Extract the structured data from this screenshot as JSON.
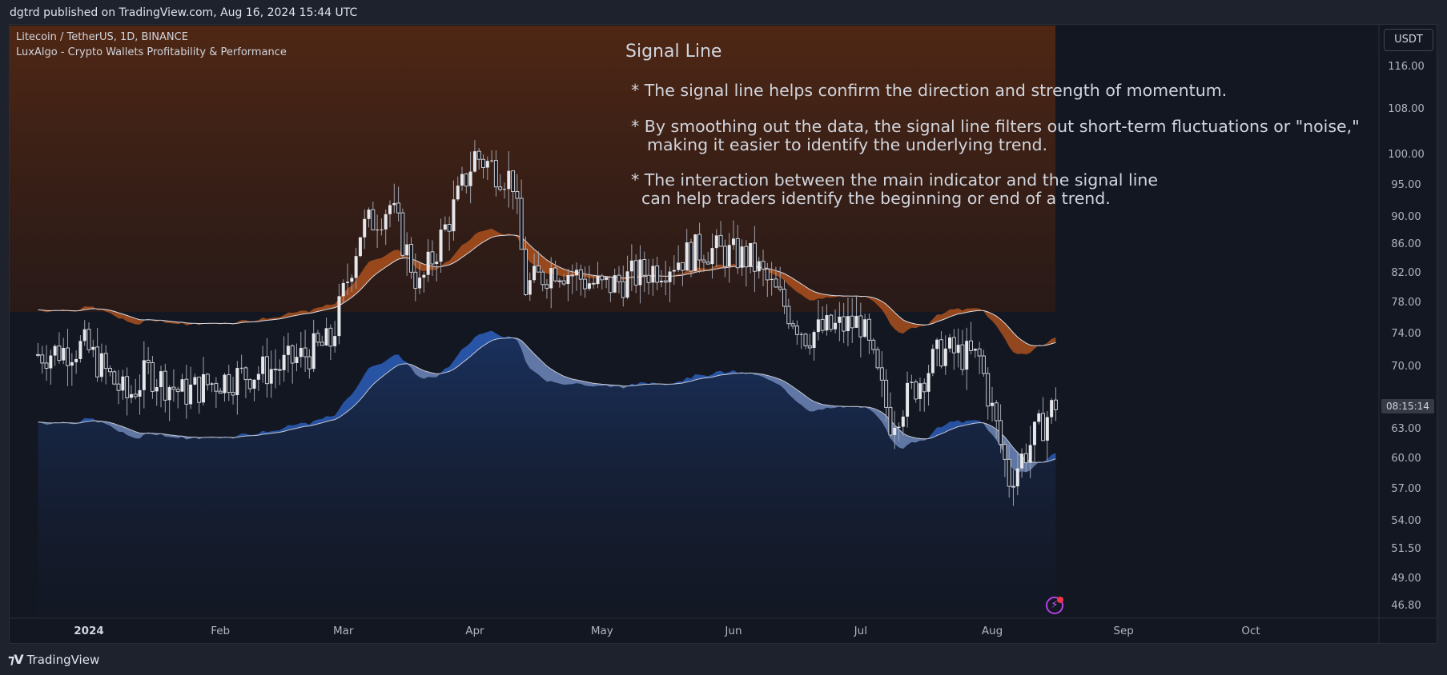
{
  "header": {
    "published": "dgtrd published on TradingView.com, Aug 16, 2024 15:44 UTC"
  },
  "legend": {
    "symbol": "Litecoin / TetherUS, 1D, BINANCE",
    "indicator": "LuxAlgo - Crypto Wallets Profitability & Performance"
  },
  "annotation": {
    "title": "Signal Line",
    "lines": [
      "* The signal line helps confirm the direction and strength of momentum.",
      "* By smoothing out the data, the signal line filters out short-term fluctuations or \"noise,\"",
      "making it easier to identify the underlying trend.",
      "* The interaction between the main indicator and the signal line",
      "can help traders identify the beginning or end of a trend."
    ]
  },
  "currency": "USDT",
  "countdown": "08:15:14",
  "footer": {
    "brand": "TradingView"
  },
  "colors": {
    "background": "#131722",
    "candle": "#c8cad0",
    "orange_fill": "#b4541e",
    "blue_fill": "#2b5aa8",
    "signal_line": "#b8bcc8"
  },
  "chart_data": {
    "type": "candlestick",
    "price_scale": "log",
    "y_ticks": [
      "116.00",
      "108.00",
      "100.00",
      "95.00",
      "90.00",
      "86.00",
      "82.00",
      "78.00",
      "74.00",
      "70.00",
      "63.00",
      "60.00",
      "57.00",
      "54.00",
      "51.50",
      "49.00",
      "46.80"
    ],
    "x_ticks": [
      "2024",
      "Feb",
      "Mar",
      "Apr",
      "May",
      "Jun",
      "Jul",
      "Aug",
      "Sep",
      "Oct"
    ],
    "close_points": [
      {
        "x": "2023-12-20",
        "y": 71.5
      },
      {
        "x": "2023-12-31",
        "y": 72.5
      },
      {
        "x": "2024-01-10",
        "y": 66.5
      },
      {
        "x": "2024-01-15",
        "y": 69.5
      },
      {
        "x": "2024-01-23",
        "y": 67.0
      },
      {
        "x": "2024-02-01",
        "y": 68.5
      },
      {
        "x": "2024-02-15",
        "y": 70.0
      },
      {
        "x": "2024-02-27",
        "y": 73.0
      },
      {
        "x": "2024-03-05",
        "y": 88.0
      },
      {
        "x": "2024-03-12",
        "y": 92.0
      },
      {
        "x": "2024-03-19",
        "y": 80.0
      },
      {
        "x": "2024-03-28",
        "y": 93.0
      },
      {
        "x": "2024-04-01",
        "y": 100.0
      },
      {
        "x": "2024-04-10",
        "y": 96.0
      },
      {
        "x": "2024-04-13",
        "y": 80.0
      },
      {
        "x": "2024-04-20",
        "y": 83.0
      },
      {
        "x": "2024-05-01",
        "y": 80.0
      },
      {
        "x": "2024-05-15",
        "y": 83.0
      },
      {
        "x": "2024-05-25",
        "y": 85.5
      },
      {
        "x": "2024-06-05",
        "y": 84.0
      },
      {
        "x": "2024-06-18",
        "y": 74.0
      },
      {
        "x": "2024-07-01",
        "y": 75.5
      },
      {
        "x": "2024-07-08",
        "y": 64.0
      },
      {
        "x": "2024-07-20",
        "y": 72.0
      },
      {
        "x": "2024-07-29",
        "y": 71.0
      },
      {
        "x": "2024-08-05",
        "y": 58.0
      },
      {
        "x": "2024-08-16",
        "y": 66.0
      }
    ]
  }
}
